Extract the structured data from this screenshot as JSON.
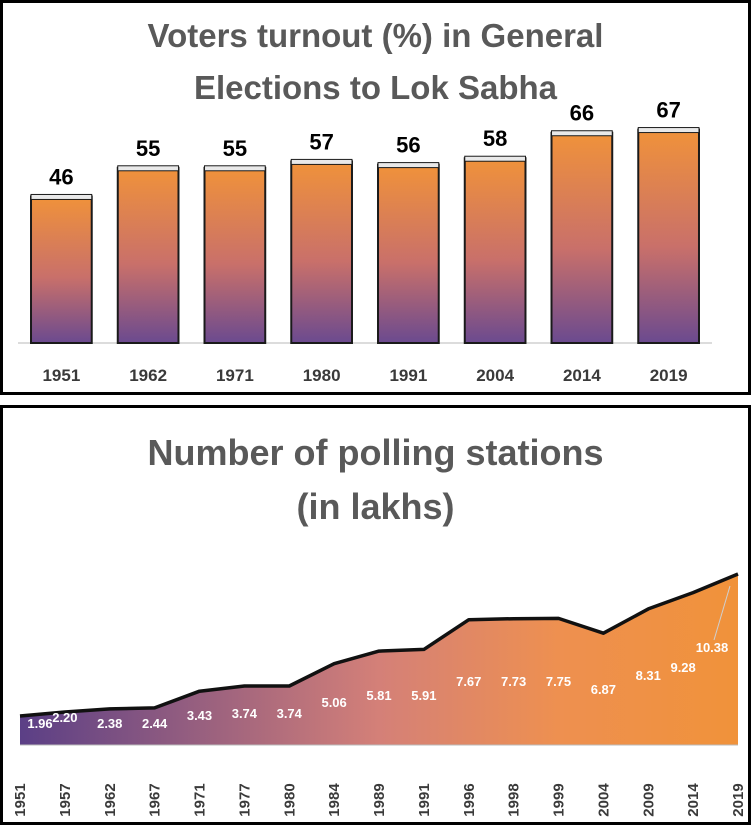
{
  "chart_data": [
    {
      "type": "bar",
      "title_line1": "Voters turnout (%) in General",
      "title_line2": "Elections to Lok Sabha",
      "categories": [
        "1951",
        "1962",
        "1971",
        "1980",
        "1991",
        "2004",
        "2014",
        "2019"
      ],
      "values": [
        46,
        55,
        55,
        57,
        56,
        58,
        66,
        67
      ],
      "value_labels": [
        "46",
        "55",
        "55",
        "57",
        "56",
        "58",
        "66",
        "67"
      ],
      "ylim": [
        0,
        70
      ],
      "grid": false,
      "legend": "none",
      "colors": {
        "bar_top": "#f0923a",
        "bar_bottom": "#6b4a8f",
        "bar_edge": "#1a1a1a"
      }
    },
    {
      "type": "area",
      "title_line1": "Number of polling stations",
      "title_line2": "(in lakhs)",
      "x": [
        "1951",
        "1957",
        "1962",
        "1967",
        "1971",
        "1977",
        "1980",
        "1984",
        "1989",
        "1991",
        "1996",
        "1998",
        "1999",
        "2004",
        "2009",
        "2014",
        "2019"
      ],
      "values": [
        1.96,
        2.2,
        2.38,
        2.44,
        3.43,
        3.74,
        3.74,
        5.06,
        5.81,
        5.91,
        7.67,
        7.73,
        7.75,
        6.87,
        8.31,
        9.28,
        10.38
      ],
      "value_labels": [
        "1.96",
        "2.20",
        "2.38",
        "2.44",
        "3.43",
        "3.74",
        "3.74",
        "5.06",
        "5.81",
        "5.91",
        "7.67",
        "7.73",
        "7.75",
        "6.87",
        "8.31",
        "9.28",
        "10.38"
      ],
      "ylim": [
        0,
        11
      ],
      "grid": false,
      "legend": "none",
      "colors": {
        "area_left": "#5b3f86",
        "area_mid": "#d48078",
        "area_right": "#f0923a",
        "line": "#111111"
      }
    }
  ]
}
